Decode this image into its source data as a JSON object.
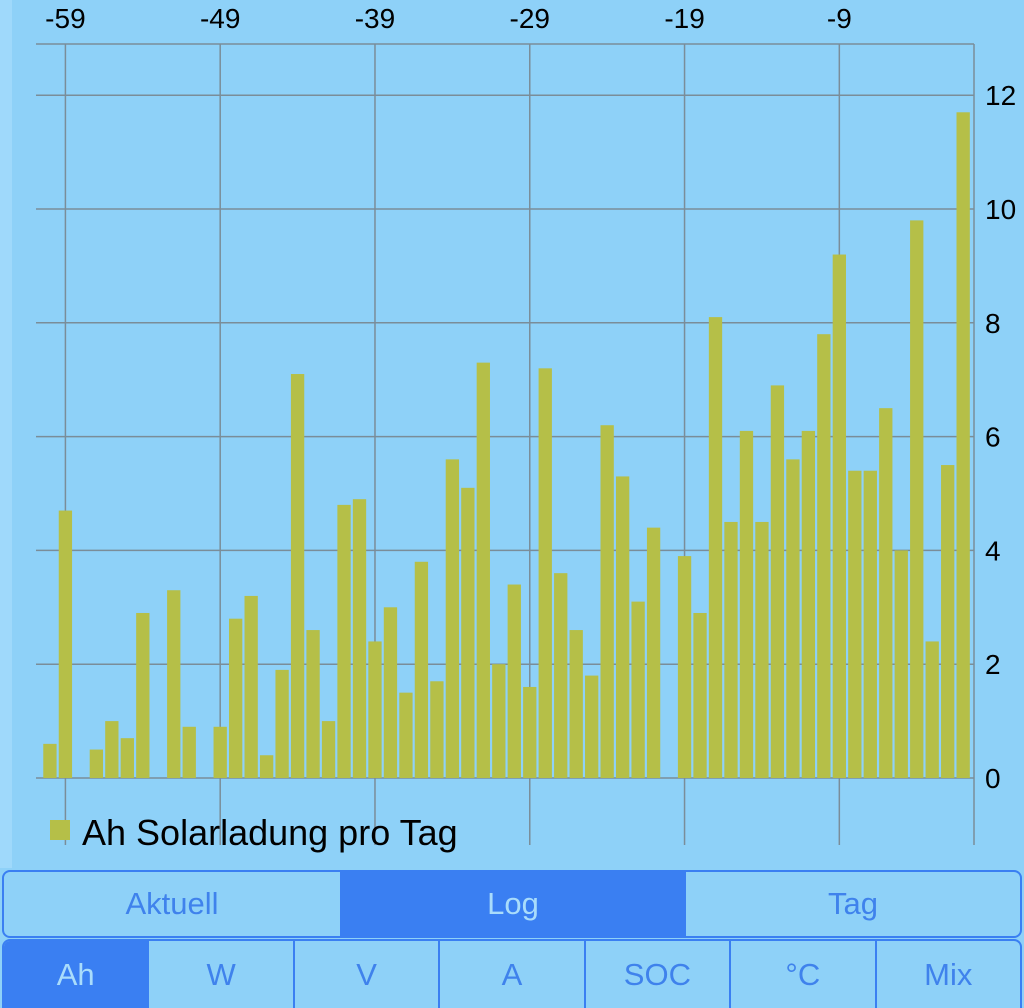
{
  "chart_data": {
    "type": "bar",
    "title": "",
    "xlabel": "",
    "ylabel": "",
    "x": [
      -60,
      -59,
      -58,
      -57,
      -56,
      -55,
      -54,
      -53,
      -52,
      -51,
      -50,
      -49,
      -48,
      -47,
      -46,
      -45,
      -44,
      -43,
      -42,
      -41,
      -40,
      -39,
      -38,
      -37,
      -36,
      -35,
      -34,
      -33,
      -32,
      -31,
      -30,
      -29,
      -28,
      -27,
      -26,
      -25,
      -24,
      -23,
      -22,
      -21,
      -20,
      -19,
      -18,
      -17,
      -16,
      -15,
      -14,
      -13,
      -12,
      -11,
      -10,
      -9,
      -8,
      -7,
      -6,
      -5,
      -4,
      -3,
      -2,
      -1
    ],
    "values": [
      0.6,
      4.7,
      0,
      0.5,
      1.0,
      0.7,
      2.9,
      0,
      3.3,
      0.9,
      0,
      0.9,
      2.8,
      3.2,
      0.4,
      1.9,
      7.1,
      2.6,
      1.0,
      4.8,
      4.9,
      2.4,
      3.0,
      1.5,
      3.8,
      1.7,
      5.6,
      5.1,
      7.3,
      2.0,
      3.4,
      1.6,
      7.2,
      3.6,
      2.6,
      1.8,
      6.2,
      5.3,
      3.1,
      4.4,
      0,
      3.9,
      2.9,
      8.1,
      4.5,
      6.1,
      4.5,
      6.9,
      5.6,
      6.1,
      7.8,
      9.2,
      5.4,
      5.4,
      6.5,
      4.0,
      9.8,
      2.4,
      5.5,
      11.7
    ],
    "x_ticks": [
      "-59",
      "-49",
      "-39",
      "-29",
      "-19",
      "-9"
    ],
    "x_tick_values": [
      -59,
      -49,
      -39,
      -29,
      -19,
      -9
    ],
    "y_ticks": [
      "0",
      "2",
      "4",
      "6",
      "8",
      "10",
      "12"
    ],
    "y_tick_values": [
      0,
      2,
      4,
      6,
      8,
      10,
      12
    ],
    "ylim": [
      0,
      12.9
    ],
    "xlim": [
      -60.9,
      -0.3
    ],
    "grid": true,
    "legend": {
      "placement": "bottom-left",
      "entries": [
        "Ah Solarladung pro Tag"
      ]
    },
    "series": [
      {
        "name": "Ah Solarladung pro Tag",
        "color": "#b5bf48"
      }
    ]
  },
  "colors": {
    "background": "#8ed1f8",
    "bar": "#b5bf48",
    "grid": "#7a8d99",
    "accent": "#3a7ff2"
  },
  "mode_tabs": [
    {
      "label": "Aktuell",
      "active": false
    },
    {
      "label": "Log",
      "active": true
    },
    {
      "label": "Tag",
      "active": false
    }
  ],
  "unit_tabs": [
    {
      "label": "Ah",
      "active": true
    },
    {
      "label": "W",
      "active": false
    },
    {
      "label": "V",
      "active": false
    },
    {
      "label": "A",
      "active": false
    },
    {
      "label": "SOC",
      "active": false
    },
    {
      "label": "°C",
      "active": false
    },
    {
      "label": "Mix",
      "active": false
    }
  ]
}
